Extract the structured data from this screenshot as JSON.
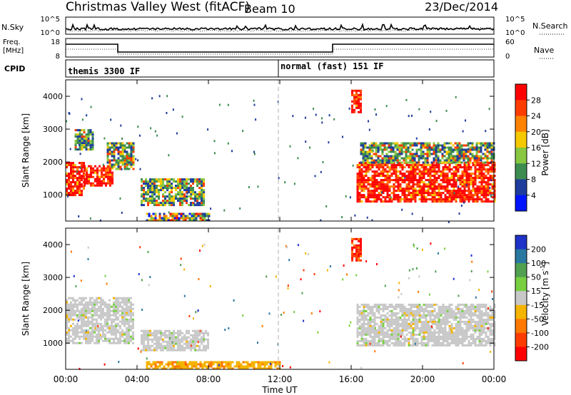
{
  "header": {
    "station": "Christmas Valley West (fitACF)",
    "beam": "Beam 10",
    "date": "23/Dec/2014"
  },
  "panels": {
    "nsky": {
      "left_label": "N.Sky",
      "left_top": "10^5",
      "left_bottom": "10^0",
      "right_top": "10^5",
      "right_bottom": "10^0",
      "right_label": "N.Search"
    },
    "freq": {
      "left_label_1": "Freq.",
      "left_label_2": "[MHz]",
      "left_top": "18",
      "left_bottom": "8",
      "right_top": "60",
      "right_bottom": "0",
      "right_label": "Nave"
    },
    "cpid": {
      "label": "CPID",
      "mode_1": "themis 3300 IF",
      "mode_2": "normal (fast) 151 IF"
    }
  },
  "x_axis": {
    "label": "Time UT",
    "ticks": [
      "00:00",
      "04:00",
      "08:00",
      "12:00",
      "16:00",
      "20:00",
      "00:00"
    ]
  },
  "power_colorbar": {
    "label": "Power [dB]",
    "ticks": [
      "28",
      "24",
      "20",
      "16",
      "12",
      "8",
      "4"
    ],
    "colors": [
      "#ff0000",
      "#ff3c00",
      "#ff8200",
      "#f5c800",
      "#88c840",
      "#3c8c50",
      "#1e3c9c",
      "#0014ff"
    ]
  },
  "velocity_colorbar": {
    "label": "Velocity [m s^-1]",
    "ticks": [
      "200",
      "100",
      "50",
      "15",
      "-15",
      "-50",
      "-100",
      "-200"
    ],
    "colors": [
      "#1e32c8",
      "#2878a0",
      "#50a050",
      "#78d040",
      "#c8c8c8",
      "#f5b400",
      "#ff7800",
      "#ff3c00",
      "#ff0000"
    ]
  },
  "chart_data": [
    {
      "type": "heatmap",
      "name": "power",
      "ylabel": "Slant Range [km]",
      "xlabel": "",
      "xlim_hours": [
        0,
        24
      ],
      "ylim": [
        200,
        4500
      ],
      "yticks": [
        1000,
        2000,
        3000,
        4000
      ],
      "regions": [
        {
          "t": [
            0.0,
            1.0
          ],
          "r": [
            1000,
            2000
          ],
          "level": "high"
        },
        {
          "t": [
            1.0,
            2.6
          ],
          "r": [
            1300,
            1900
          ],
          "level": "high"
        },
        {
          "t": [
            0.5,
            1.5
          ],
          "r": [
            2400,
            3000
          ],
          "level": "mid"
        },
        {
          "t": [
            2.3,
            3.8
          ],
          "r": [
            1800,
            2600
          ],
          "level": "mid"
        },
        {
          "t": [
            4.2,
            7.8
          ],
          "r": [
            700,
            1500
          ],
          "level": "mid"
        },
        {
          "t": [
            4.5,
            8.0
          ],
          "r": [
            250,
            450
          ],
          "level": "mixed"
        },
        {
          "t": [
            16.0,
            16.5
          ],
          "r": [
            3500,
            4200
          ],
          "level": "high"
        },
        {
          "t": [
            16.3,
            24.0
          ],
          "r": [
            800,
            2000
          ],
          "level": "high"
        },
        {
          "t": [
            16.5,
            24.0
          ],
          "r": [
            2000,
            2600
          ],
          "level": "mid"
        }
      ]
    },
    {
      "type": "heatmap",
      "name": "velocity",
      "ylabel": "Slant Range [km]",
      "xlabel": "Time UT",
      "xlim_hours": [
        0,
        24
      ],
      "ylim": [
        200,
        4500
      ],
      "yticks": [
        1000,
        2000,
        3000,
        4000
      ],
      "regions": [
        {
          "t": [
            0.0,
            3.8
          ],
          "r": [
            1000,
            2400
          ],
          "level": "ground"
        },
        {
          "t": [
            4.2,
            8.0
          ],
          "r": [
            800,
            1400
          ],
          "level": "ground"
        },
        {
          "t": [
            4.5,
            12.0
          ],
          "r": [
            250,
            450
          ],
          "level": "orange"
        },
        {
          "t": [
            16.0,
            16.5
          ],
          "r": [
            3500,
            4200
          ],
          "level": "red"
        },
        {
          "t": [
            16.3,
            24.0
          ],
          "r": [
            900,
            2200
          ],
          "level": "ground"
        }
      ]
    }
  ]
}
